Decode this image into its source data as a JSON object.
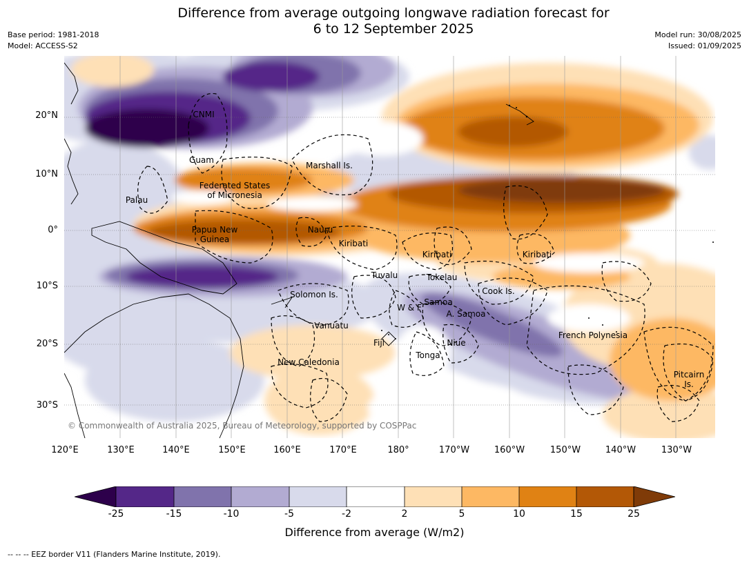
{
  "title_line1": "Difference from average outgoing longwave radiation forecast for",
  "title_line2": "6 to 12 September 2025",
  "base_period": "Base period: 1981-2018",
  "model": "Model: ACCESS-S2",
  "model_run": "Model run: 30/08/2025",
  "issued": "Issued: 01/09/2025",
  "lat_ticks": [
    "20°N",
    "10°N",
    "0°",
    "10°S",
    "20°S",
    "30°S"
  ],
  "lon_ticks": [
    "120°E",
    "130°E",
    "140°E",
    "150°E",
    "160°E",
    "170°E",
    "180°",
    "170°W",
    "160°W",
    "150°W",
    "140°W",
    "130°W"
  ],
  "region_labels": {
    "cnmi": "CNMI",
    "guam": "Guam",
    "marshall": "Marshall Is.",
    "fsm_1": "Federated States",
    "fsm_2": "of Micronesia",
    "palau": "Palau",
    "png_1": "Papua New",
    "png_2": "Guinea",
    "nauru": "Nauru",
    "kiribati_w": "Kiribati",
    "kiribati_c": "Kiribati",
    "kiribati_e": "Kiribati",
    "tuvalu": "Tuvalu",
    "tokelau": "Tokelau",
    "cook": "Cook Is.",
    "solomon": "Solomon Is.",
    "wf": "W & F",
    "samoa": "Samoa",
    "asamoa": "A. Samoa",
    "vanuatu": "Vanuatu",
    "fiji": "Fiji",
    "niue": "Niue",
    "tonga": "Tonga",
    "new_caledonia": "New Caledonia",
    "french_polynesia": "French Polynesia",
    "pitcairn_1": "Pitcairn",
    "pitcairn_2": "Is."
  },
  "copyright": "© Commonwealth of Australia 2025, Bureau of Meteorology, supported by COSPPac",
  "colorbar": {
    "title": "Difference from average (W/m2)",
    "tick_labels": [
      "-25",
      "-15",
      "-10",
      "-5",
      "-2",
      "2",
      "5",
      "10",
      "15",
      "25"
    ],
    "colors": {
      "lt_-25": "#2d004b",
      "-25_-15": "#542788",
      "-15_-10": "#8073ac",
      "-10_-5": "#b2abd2",
      "-5_-2": "#d8daeb",
      "-2_2": "#ffffff",
      "2_5": "#fee0b6",
      "5_10": "#fdb863",
      "10_15": "#e08214",
      "15_25": "#b35806",
      "gt_25": "#7f3b08"
    }
  },
  "footnote": "--  --  -- EEZ border V11 (Flanders Marine Institute, 2019)."
}
